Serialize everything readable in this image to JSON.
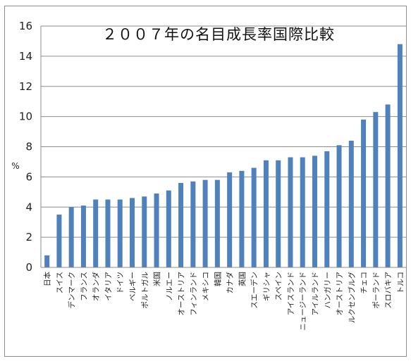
{
  "chart_data": {
    "type": "bar",
    "title": "２００７年の名目成長率国際比較",
    "ylabel": "%",
    "xlabel": "",
    "ylim": [
      0,
      16
    ],
    "yticks": [
      0,
      2,
      4,
      6,
      8,
      10,
      12,
      14,
      16
    ],
    "grid": true,
    "bar_color": "#4f81bd",
    "categories": [
      "日本",
      "スイス",
      "デンマーク",
      "フランス",
      "オランダ",
      "イタリア",
      "ドイツ",
      "ベルギー",
      "ポルトガル",
      "米国",
      "ノルエー",
      "オーストリア",
      "フィンランド",
      "メキシコ",
      "韓国",
      "カナダ",
      "英国",
      "スエーデン",
      "ギリシャ",
      "スペイン",
      "アイスランド",
      "ニュージーランド",
      "アイルランド",
      "ハンガリー",
      "オーストリア",
      "ルクセンブルグ",
      "チェコ",
      "ポーランド",
      "スロバキア",
      "トルコ"
    ],
    "values": [
      0.8,
      3.5,
      4.0,
      4.1,
      4.5,
      4.5,
      4.5,
      4.6,
      4.7,
      4.9,
      5.1,
      5.6,
      5.7,
      5.8,
      5.8,
      6.3,
      6.4,
      6.6,
      7.1,
      7.1,
      7.3,
      7.3,
      7.4,
      7.7,
      8.1,
      8.4,
      9.8,
      10.3,
      10.8,
      14.8
    ]
  }
}
